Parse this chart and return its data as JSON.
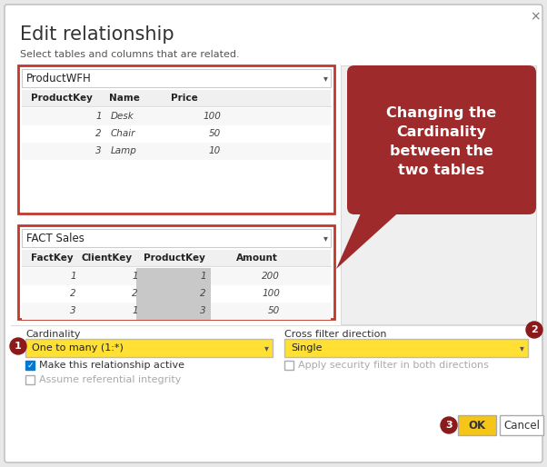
{
  "title": "Edit relationship",
  "subtitle": "Select tables and columns that are related.",
  "bg_color": "#e8e8e8",
  "dialog_bg": "#ffffff",
  "table1_name": "ProductWFH",
  "table1_headers": [
    "ProductKey",
    "Name",
    "Price"
  ],
  "table1_rows": [
    [
      "1",
      "Desk",
      "100"
    ],
    [
      "2",
      "Chair",
      "50"
    ],
    [
      "3",
      "Lamp",
      "10"
    ]
  ],
  "table2_name": "FACT Sales",
  "table2_headers": [
    "FactKey",
    "ClientKey",
    "ProductKey",
    "Amount"
  ],
  "table2_rows": [
    [
      "1",
      "1",
      "1",
      "200"
    ],
    [
      "2",
      "2",
      "2",
      "100"
    ],
    [
      "3",
      "1",
      "3",
      "50"
    ]
  ],
  "callout_text": "Changing the\nCardinality\nbetween the\ntwo tables",
  "callout_bg": "#9e2a2b",
  "callout_text_color": "#ffffff",
  "cardinality_label": "Cardinality",
  "cardinality_value": "One to many (1:*)",
  "crossfilter_label": "Cross filter direction",
  "crossfilter_value": "Single",
  "dropdown_highlight": "#ffe033",
  "checkbox1_label": "Make this relationship active",
  "checkbox2_label": "Assume referential integrity",
  "checkbox3_label": "Apply security filter in both directions",
  "ok_label": "OK",
  "cancel_label": "Cancel",
  "ok_bg": "#f5c518",
  "red_border": "#c0392b",
  "circle_bg": "#8b1a1a",
  "circle_text_color": "#ffffff",
  "right_panel_bg": "#efefef",
  "close_x": "×"
}
